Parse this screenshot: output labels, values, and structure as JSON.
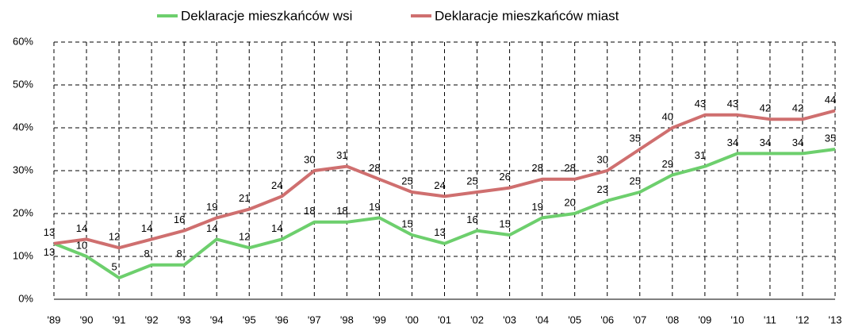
{
  "chart_data": {
    "type": "line",
    "categories": [
      "'89",
      "'90",
      "'91",
      "'92",
      "'93",
      "'94",
      "'95",
      "'96",
      "'97",
      "'98",
      "'99",
      "'00",
      "'01",
      "'02",
      "'03",
      "'04",
      "'05",
      "'06",
      "'07",
      "'08",
      "'09",
      "'10",
      "'11",
      "'12",
      "'13"
    ],
    "series": [
      {
        "name": "Deklaracje mieszkańców wsi",
        "color": "#6dcf6d",
        "values": [
          13,
          10,
          5,
          8,
          8,
          14,
          12,
          14,
          18,
          18,
          19,
          15,
          13,
          16,
          15,
          19,
          20,
          23,
          25,
          29,
          31,
          34,
          34,
          34,
          35
        ]
      },
      {
        "name": "Deklaracje mieszkańców miast",
        "color": "#cf6f6f",
        "values": [
          13,
          14,
          12,
          14,
          16,
          19,
          21,
          24,
          30,
          31,
          28,
          25,
          24,
          25,
          26,
          28,
          28,
          30,
          35,
          40,
          43,
          43,
          42,
          42,
          44
        ]
      }
    ],
    "ylim": [
      0,
      60
    ],
    "yticks": [
      {
        "value": 0,
        "label": "0%"
      },
      {
        "value": 10,
        "label": "10%"
      },
      {
        "value": 20,
        "label": "20%"
      },
      {
        "value": 30,
        "label": "30%"
      },
      {
        "value": 40,
        "label": "40%"
      },
      {
        "value": 50,
        "label": "50%"
      },
      {
        "value": 60,
        "label": "60%"
      }
    ],
    "grid": true,
    "legend": "top"
  }
}
